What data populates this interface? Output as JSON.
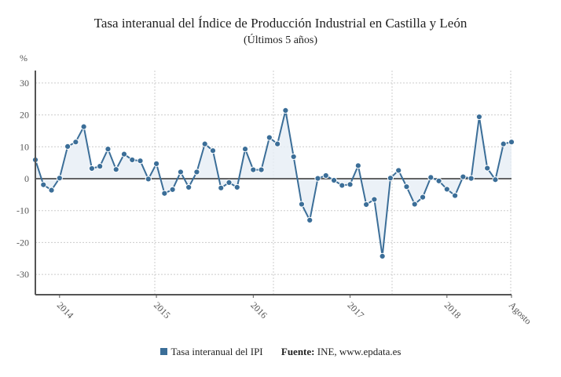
{
  "colors": {
    "series": "#3b6e98",
    "fill": "#e6edf5",
    "zero": "#333333",
    "grid": "#cccccc"
  },
  "chart_data": {
    "type": "area",
    "title": "Tasa interanual del Índice de Producción Industrial en Castilla y León",
    "subtitle": "(Últimos 5 años)",
    "ylabel": "%",
    "ylim": [
      -36,
      34
    ],
    "yticks": [
      -30,
      -20,
      -10,
      0,
      10,
      20,
      30
    ],
    "xticks": [
      {
        "label": "2014",
        "index": 3
      },
      {
        "label": "2015",
        "index": 15
      },
      {
        "label": "2016",
        "index": 27
      },
      {
        "label": "2017",
        "index": 39
      },
      {
        "label": "2018",
        "index": 51
      },
      {
        "label": "Agosto",
        "index": 59
      }
    ],
    "grid": true,
    "legend_position": "bottom",
    "series": [
      {
        "name": "Tasa interanual del IPI",
        "values": [
          5.9,
          -1.9,
          -3.6,
          0.2,
          10.1,
          11.5,
          16.3,
          3.2,
          3.9,
          9.3,
          2.9,
          7.7,
          5.9,
          5.6,
          -0.1,
          4.7,
          -4.6,
          -3.4,
          2.1,
          -2.7,
          2.1,
          10.9,
          8.8,
          -2.9,
          -1.2,
          -2.7,
          9.3,
          2.8,
          2.8,
          12.9,
          10.9,
          21.4,
          6.9,
          -8.0,
          -13.0,
          0.1,
          1.0,
          -0.5,
          -2.1,
          -1.8,
          4.1,
          -8.1,
          -6.5,
          -24.3,
          0.2,
          2.6,
          -2.5,
          -8.0,
          -5.8,
          0.4,
          -0.7,
          -3.3,
          -5.3,
          0.6,
          0.1,
          19.4,
          3.3,
          -0.3,
          10.9,
          11.5
        ]
      }
    ]
  },
  "legend": {
    "series_label": "Tasa interanual del IPI",
    "source_label": "Fuente:",
    "source_value": "INE, www.epdata.es"
  }
}
